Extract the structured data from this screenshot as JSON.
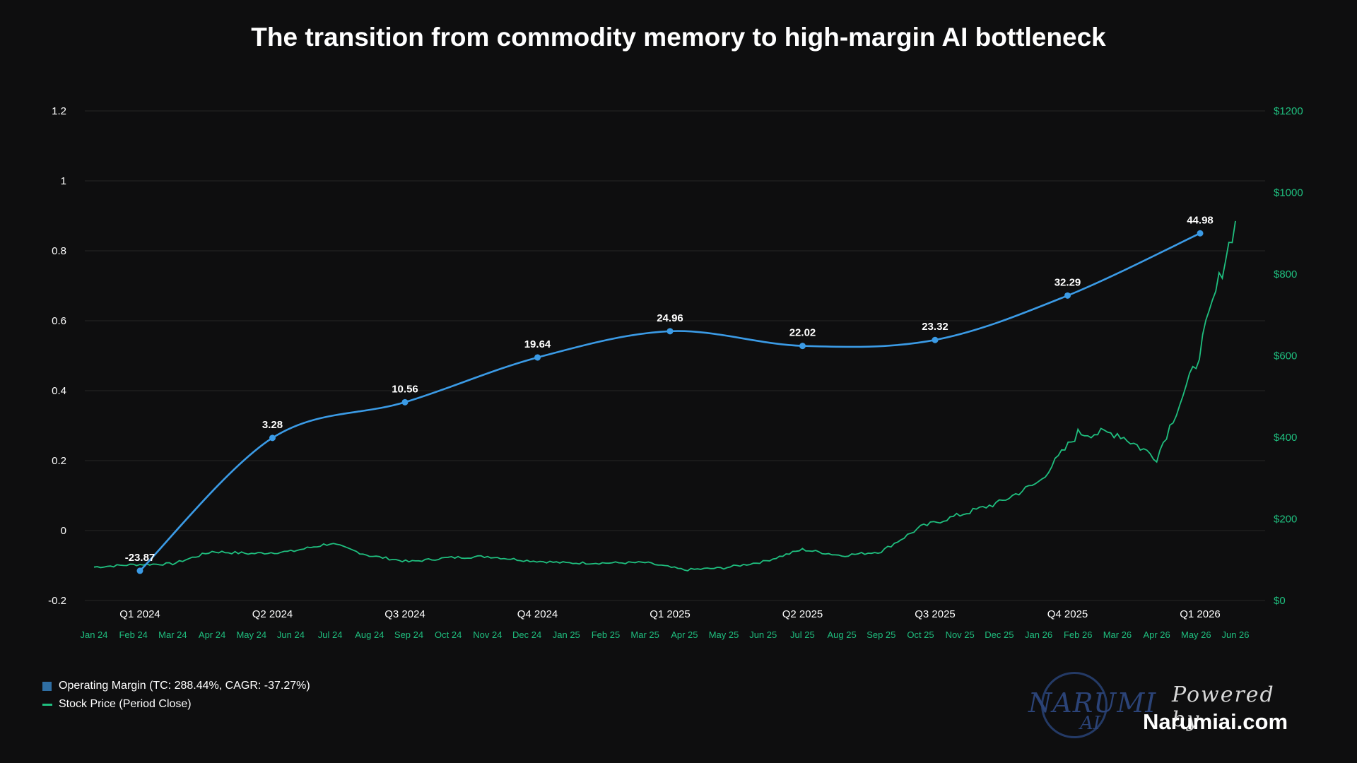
{
  "chart_data": {
    "type": "line",
    "title": "The transition from commodity memory to high-margin AI bottleneck",
    "left_axis": {
      "ticks": [
        "1.2",
        "1",
        "0.8",
        "0.6",
        "0.4",
        "0.2",
        "0",
        "-0.2"
      ],
      "range": [
        -0.2,
        1.2
      ]
    },
    "right_axis": {
      "ticks": [
        "$1200",
        "$1000",
        "$800",
        "$600",
        "$400",
        "$200",
        "$0"
      ],
      "range": [
        0,
        1200
      ]
    },
    "quarter_labels": [
      "Q1 2024",
      "Q2 2024",
      "Q3 2024",
      "Q4 2024",
      "Q1 2025",
      "Q2 2025",
      "Q3 2025",
      "Q4 2025",
      "Q1 2026"
    ],
    "month_labels": [
      "Jan 24",
      "Feb 24",
      "Mar 24",
      "Apr 24",
      "May 24",
      "Jun 24",
      "Jul 24",
      "Aug 24",
      "Sep 24",
      "Oct 24",
      "Nov 24",
      "Dec 24",
      "Jan 25",
      "Feb 25",
      "Mar 25",
      "Apr 25",
      "May 25",
      "Jun 25",
      "Jul 25",
      "Aug 25",
      "Sep 25",
      "Oct 25",
      "Nov 25",
      "Dec 25",
      "Jan 26",
      "Feb 26",
      "Mar 26",
      "Apr 26",
      "May 26",
      "Jun 26"
    ],
    "series": [
      {
        "name": "Operating Margin (TC: 288.44%, CAGR: -37.27%)",
        "color": "#3b9be6",
        "axis": "left",
        "x": [
          "Q1 2024",
          "Q2 2024",
          "Q3 2024",
          "Q4 2024",
          "Q1 2025",
          "Q2 2025",
          "Q3 2025",
          "Q4 2025",
          "Q1 2026"
        ],
        "values": [
          -0.115,
          0.265,
          0.367,
          0.495,
          0.57,
          0.528,
          0.545,
          0.672,
          0.85
        ],
        "labels": [
          "-23.87",
          "3.28",
          "10.56",
          "19.64",
          "24.96",
          "22.02",
          "23.32",
          "32.29",
          "44.98"
        ]
      },
      {
        "name": "Stock Price (Period Close)",
        "color": "#1fbf7f",
        "axis": "right",
        "x": [
          "Jan 24",
          "Feb 24",
          "Mar 24",
          "Apr 24",
          "May 24",
          "Jun 24",
          "Jul 24",
          "Aug 24",
          "Sep 24",
          "Oct 24",
          "Nov 24",
          "Dec 24",
          "Jan 25",
          "Feb 25",
          "Mar 25",
          "Apr 25",
          "May 25",
          "Jun 25",
          "Jul 25",
          "Aug 25",
          "Sep 25",
          "Oct 25",
          "Nov 25",
          "Dec 25",
          "Jan 26",
          "Feb 26",
          "Mar 26",
          "Apr 26",
          "May 26",
          "Jun 26"
        ],
        "values": [
          82,
          88,
          90,
          120,
          115,
          120,
          140,
          110,
          95,
          105,
          108,
          98,
          92,
          92,
          93,
          75,
          80,
          95,
          125,
          110,
          120,
          180,
          210,
          240,
          290,
          410,
          410,
          350,
          580,
          930
        ]
      }
    ],
    "legend": "bottom-left"
  },
  "legend": {
    "margin_label": "Operating Margin (TC: 288.44%, CAGR: -37.27%)",
    "price_label": "Stock Price (Period Close)"
  },
  "branding": {
    "logo_text": "NARUMI",
    "logo_sub": "AI",
    "powered_by": "Powered by",
    "site": "Narumiai.com"
  }
}
